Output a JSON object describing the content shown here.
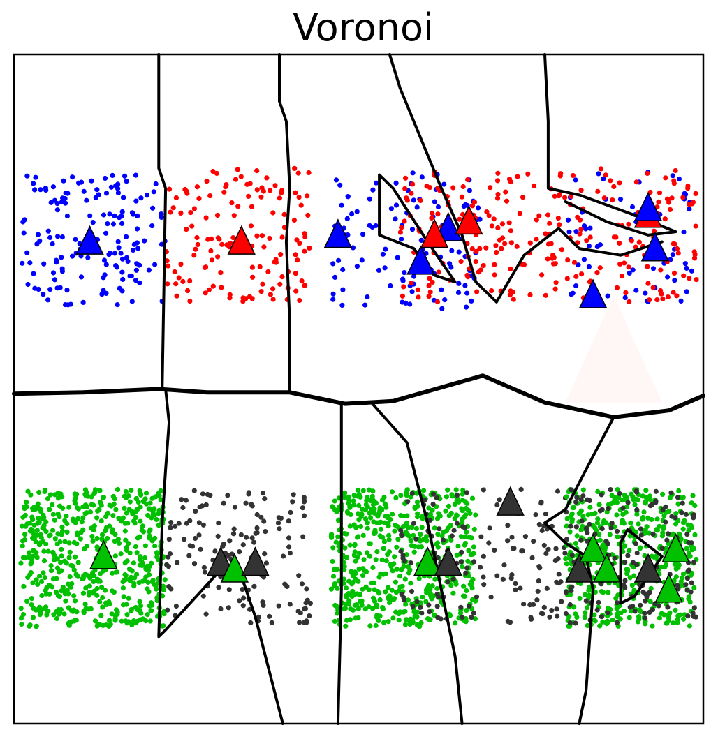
{
  "chart_data": {
    "type": "scatter",
    "title": "Voronoi",
    "xlabel": "",
    "ylabel": "",
    "xlim": [
      0,
      1
    ],
    "ylim": [
      0,
      1
    ],
    "axis_ticks": "none",
    "grid": false,
    "legend": "none",
    "colors": {
      "blue": "#0000ff",
      "red": "#ff0000",
      "green": "#00c000",
      "dark": "#333333",
      "boundary": "#000000",
      "faint_triangle": "#fff7f5"
    },
    "point_clusters": [
      {
        "color": "blue",
        "x_range": [
          0.01,
          0.22
        ],
        "y_range": [
          0.625,
          0.82
        ],
        "count": 160
      },
      {
        "color": "red",
        "x_range": [
          0.22,
          0.43
        ],
        "y_range": [
          0.63,
          0.83
        ],
        "count": 140
      },
      {
        "color": "blue",
        "x_range": [
          0.46,
          0.68
        ],
        "y_range": [
          0.62,
          0.83
        ],
        "count": 110
      },
      {
        "color": "red",
        "x_range": [
          0.56,
          0.8
        ],
        "y_range": [
          0.63,
          0.83
        ],
        "count": 150
      },
      {
        "color": "blue",
        "x_range": [
          0.8,
          0.99
        ],
        "y_range": [
          0.63,
          0.83
        ],
        "count": 60
      },
      {
        "color": "red",
        "x_range": [
          0.8,
          0.99
        ],
        "y_range": [
          0.63,
          0.83
        ],
        "count": 110
      },
      {
        "color": "green",
        "x_range": [
          0.01,
          0.22
        ],
        "y_range": [
          0.145,
          0.35
        ],
        "count": 560
      },
      {
        "color": "dark",
        "x_range": [
          0.22,
          0.43
        ],
        "y_range": [
          0.15,
          0.35
        ],
        "count": 150
      },
      {
        "color": "green",
        "x_range": [
          0.46,
          0.67
        ],
        "y_range": [
          0.145,
          0.35
        ],
        "count": 560
      },
      {
        "color": "dark",
        "x_range": [
          0.56,
          0.8
        ],
        "y_range": [
          0.15,
          0.35
        ],
        "count": 150
      },
      {
        "color": "green",
        "x_range": [
          0.8,
          0.99
        ],
        "y_range": [
          0.145,
          0.35
        ],
        "count": 450
      },
      {
        "color": "dark",
        "x_range": [
          0.8,
          0.99
        ],
        "y_range": [
          0.15,
          0.35
        ],
        "count": 150
      }
    ],
    "prototypes": [
      {
        "color": "blue",
        "x": 0.11,
        "y": 0.72
      },
      {
        "color": "red",
        "x": 0.33,
        "y": 0.72
      },
      {
        "color": "blue",
        "x": 0.47,
        "y": 0.73
      },
      {
        "color": "blue",
        "x": 0.59,
        "y": 0.69
      },
      {
        "color": "blue",
        "x": 0.63,
        "y": 0.74
      },
      {
        "color": "red",
        "x": 0.61,
        "y": 0.73
      },
      {
        "color": "red",
        "x": 0.66,
        "y": 0.75
      },
      {
        "color": "blue",
        "x": 0.84,
        "y": 0.64
      },
      {
        "color": "red",
        "x": 0.92,
        "y": 0.76
      },
      {
        "color": "blue",
        "x": 0.92,
        "y": 0.77
      },
      {
        "color": "blue",
        "x": 0.93,
        "y": 0.71
      },
      {
        "color": "green",
        "x": 0.13,
        "y": 0.25
      },
      {
        "color": "dark",
        "x": 0.3,
        "y": 0.24
      },
      {
        "color": "green",
        "x": 0.32,
        "y": 0.23
      },
      {
        "color": "dark",
        "x": 0.35,
        "y": 0.24
      },
      {
        "color": "dark",
        "x": 0.72,
        "y": 0.33
      },
      {
        "color": "green",
        "x": 0.6,
        "y": 0.24
      },
      {
        "color": "dark",
        "x": 0.63,
        "y": 0.24
      },
      {
        "color": "dark",
        "x": 0.82,
        "y": 0.23
      },
      {
        "color": "green",
        "x": 0.84,
        "y": 0.26
      },
      {
        "color": "green",
        "x": 0.86,
        "y": 0.23
      },
      {
        "color": "dark",
        "x": 0.92,
        "y": 0.23
      },
      {
        "color": "green",
        "x": 0.96,
        "y": 0.26
      },
      {
        "color": "green",
        "x": 0.95,
        "y": 0.2
      }
    ],
    "boundaries": [
      [
        [
          0.0,
          0.493
        ],
        [
          0.1,
          0.495
        ],
        [
          0.21,
          0.5
        ],
        [
          0.28,
          0.495
        ],
        [
          0.4,
          0.495
        ],
        [
          0.48,
          0.478
        ],
        [
          0.55,
          0.482
        ],
        [
          0.68,
          0.52
        ],
        [
          0.77,
          0.48
        ],
        [
          0.87,
          0.458
        ],
        [
          0.95,
          0.468
        ],
        [
          1.0,
          0.49
        ]
      ],
      [
        [
          0.21,
          1.0
        ],
        [
          0.21,
          0.83
        ],
        [
          0.22,
          0.8
        ],
        [
          0.215,
          0.5
        ]
      ],
      [
        [
          0.385,
          1.0
        ],
        [
          0.385,
          0.93
        ],
        [
          0.395,
          0.9
        ],
        [
          0.4,
          0.8
        ],
        [
          0.395,
          0.72
        ],
        [
          0.4,
          0.6
        ],
        [
          0.4,
          0.495
        ]
      ],
      [
        [
          0.22,
          0.5
        ],
        [
          0.225,
          0.45
        ],
        [
          0.22,
          0.38
        ],
        [
          0.215,
          0.3
        ],
        [
          0.21,
          0.13
        ],
        [
          0.22,
          0.14
        ],
        [
          0.3,
          0.23
        ],
        [
          0.32,
          0.24
        ],
        [
          0.33,
          0.22
        ],
        [
          0.35,
          0.16
        ],
        [
          0.39,
          0.0
        ]
      ],
      [
        [
          0.475,
          0.478
        ],
        [
          0.475,
          0.35
        ],
        [
          0.475,
          0.2
        ],
        [
          0.47,
          0.0
        ]
      ],
      [
        [
          0.52,
          0.478
        ],
        [
          0.57,
          0.42
        ],
        [
          0.6,
          0.3
        ],
        [
          0.62,
          0.2
        ],
        [
          0.64,
          0.1
        ],
        [
          0.65,
          0.0
        ]
      ],
      [
        [
          0.87,
          0.458
        ],
        [
          0.83,
          0.38
        ],
        [
          0.8,
          0.32
        ],
        [
          0.77,
          0.3
        ],
        [
          0.8,
          0.27
        ],
        [
          0.83,
          0.25
        ],
        [
          0.84,
          0.2
        ],
        [
          0.83,
          0.05
        ],
        [
          0.82,
          0.0
        ]
      ],
      [
        [
          0.545,
          1.0
        ],
        [
          0.56,
          0.95
        ],
        [
          0.6,
          0.85
        ],
        [
          0.62,
          0.8
        ],
        [
          0.65,
          0.73
        ],
        [
          0.67,
          0.66
        ],
        [
          0.7,
          0.63
        ],
        [
          0.74,
          0.7
        ],
        [
          0.79,
          0.74
        ],
        [
          0.82,
          0.71
        ],
        [
          0.88,
          0.7
        ],
        [
          0.94,
          0.72
        ]
      ],
      [
        [
          0.53,
          0.82
        ],
        [
          0.53,
          0.73
        ],
        [
          0.58,
          0.71
        ],
        [
          0.61,
          0.67
        ],
        [
          0.64,
          0.66
        ],
        [
          0.6,
          0.72
        ],
        [
          0.55,
          0.8
        ],
        [
          0.53,
          0.82
        ]
      ],
      [
        [
          0.77,
          1.0
        ],
        [
          0.775,
          0.9
        ],
        [
          0.775,
          0.8
        ],
        [
          0.82,
          0.79
        ],
        [
          0.9,
          0.76
        ],
        [
          0.96,
          0.735
        ],
        [
          0.92,
          0.73
        ],
        [
          0.86,
          0.75
        ],
        [
          0.8,
          0.78
        ]
      ],
      [
        [
          0.88,
          0.27
        ],
        [
          0.89,
          0.29
        ],
        [
          0.94,
          0.25
        ],
        [
          0.9,
          0.19
        ],
        [
          0.88,
          0.18
        ],
        [
          0.88,
          0.27
        ]
      ]
    ]
  }
}
